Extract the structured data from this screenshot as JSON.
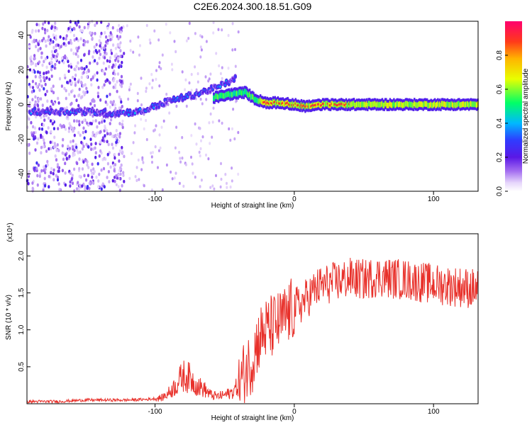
{
  "title": "C2E6.2024.300.18.51.G09",
  "colors": {
    "snr_line": "#e8302a",
    "frame": "#000000",
    "colormap": [
      "#ffffff",
      "#c9a8f5",
      "#7b1fe0",
      "#3a22ff",
      "#00c8ff",
      "#00ff60",
      "#ffff00",
      "#ff3b1f",
      "#ff0070"
    ]
  },
  "chart_data": [
    {
      "type": "heatmap",
      "title": "C2E6.2024.300.18.51.G09",
      "xlabel": "Height of straight line (km)",
      "ylabel": "Frequency (Hz)",
      "xlim": [
        -192,
        132
      ],
      "ylim": [
        -50,
        48
      ],
      "xticks": [
        -100,
        0,
        100
      ],
      "xticklabels": [
        "-100",
        "0",
        "100"
      ],
      "yticks": [
        -40,
        -20,
        0,
        20,
        40
      ],
      "yticklabels": [
        "-40",
        "-20",
        "0",
        "20",
        "40"
      ],
      "colorbar": {
        "label": "Normalized spectral amplitude",
        "range": [
          0.0,
          1.0
        ],
        "ticks": [
          0.0,
          0.2,
          0.4,
          0.6,
          0.8
        ],
        "ticklabels": [
          "0.0",
          "0.2",
          "0.4",
          "0.6",
          "0.8"
        ]
      },
      "ridges": [
        {
          "x": [
            -190,
            -158,
            -130,
            -110,
            -90,
            -70,
            -55,
            -42
          ],
          "y": [
            -4,
            -4,
            -5,
            -4,
            2,
            6,
            10,
            15
          ],
          "peak": 0.35
        },
        {
          "x": [
            -58,
            -45,
            -35,
            -28,
            -20,
            -10,
            0,
            8,
            20,
            60,
            100,
            132
          ],
          "y": [
            4,
            6,
            7,
            3,
            1,
            1,
            0,
            -1,
            0,
            0,
            0,
            0
          ],
          "peak": 0.9
        }
      ]
    },
    {
      "type": "line",
      "xlabel": "Height of straight line (km)",
      "ylabel": "SNR (10 * v/v)",
      "yscale_label": "(x10⁴)",
      "xlim": [
        -192,
        132
      ],
      "ylim": [
        0,
        2.3
      ],
      "xticks": [
        -100,
        0,
        100
      ],
      "xticklabels": [
        "-100",
        "0",
        "100"
      ],
      "yticks": [
        0.5,
        1.0,
        1.5,
        2.0
      ],
      "yticklabels": [
        "0.5",
        "1.0",
        "1.5",
        "2.0"
      ],
      "series": [
        {
          "x": [
            -192,
            -170,
            -150,
            -120,
            -105,
            -95,
            -90,
            -85,
            -80,
            -75,
            -70,
            -65,
            -60,
            -55,
            -50,
            -45,
            -40,
            -35,
            -30,
            -28,
            -25,
            -20,
            -15,
            -10,
            -5,
            0,
            5,
            10,
            15,
            20,
            30,
            40,
            50,
            60,
            70,
            80,
            90,
            100,
            110,
            120,
            132
          ],
          "y": [
            0.03,
            0.03,
            0.05,
            0.05,
            0.06,
            0.08,
            0.15,
            0.25,
            0.38,
            0.35,
            0.25,
            0.2,
            0.12,
            0.1,
            0.12,
            0.15,
            0.25,
            0.45,
            0.6,
            0.75,
            0.9,
            1.0,
            1.05,
            1.1,
            1.2,
            1.3,
            1.35,
            1.45,
            1.55,
            1.6,
            1.65,
            1.7,
            1.68,
            1.72,
            1.7,
            1.68,
            1.65,
            1.62,
            1.6,
            1.58,
            1.55
          ]
        }
      ]
    }
  ]
}
